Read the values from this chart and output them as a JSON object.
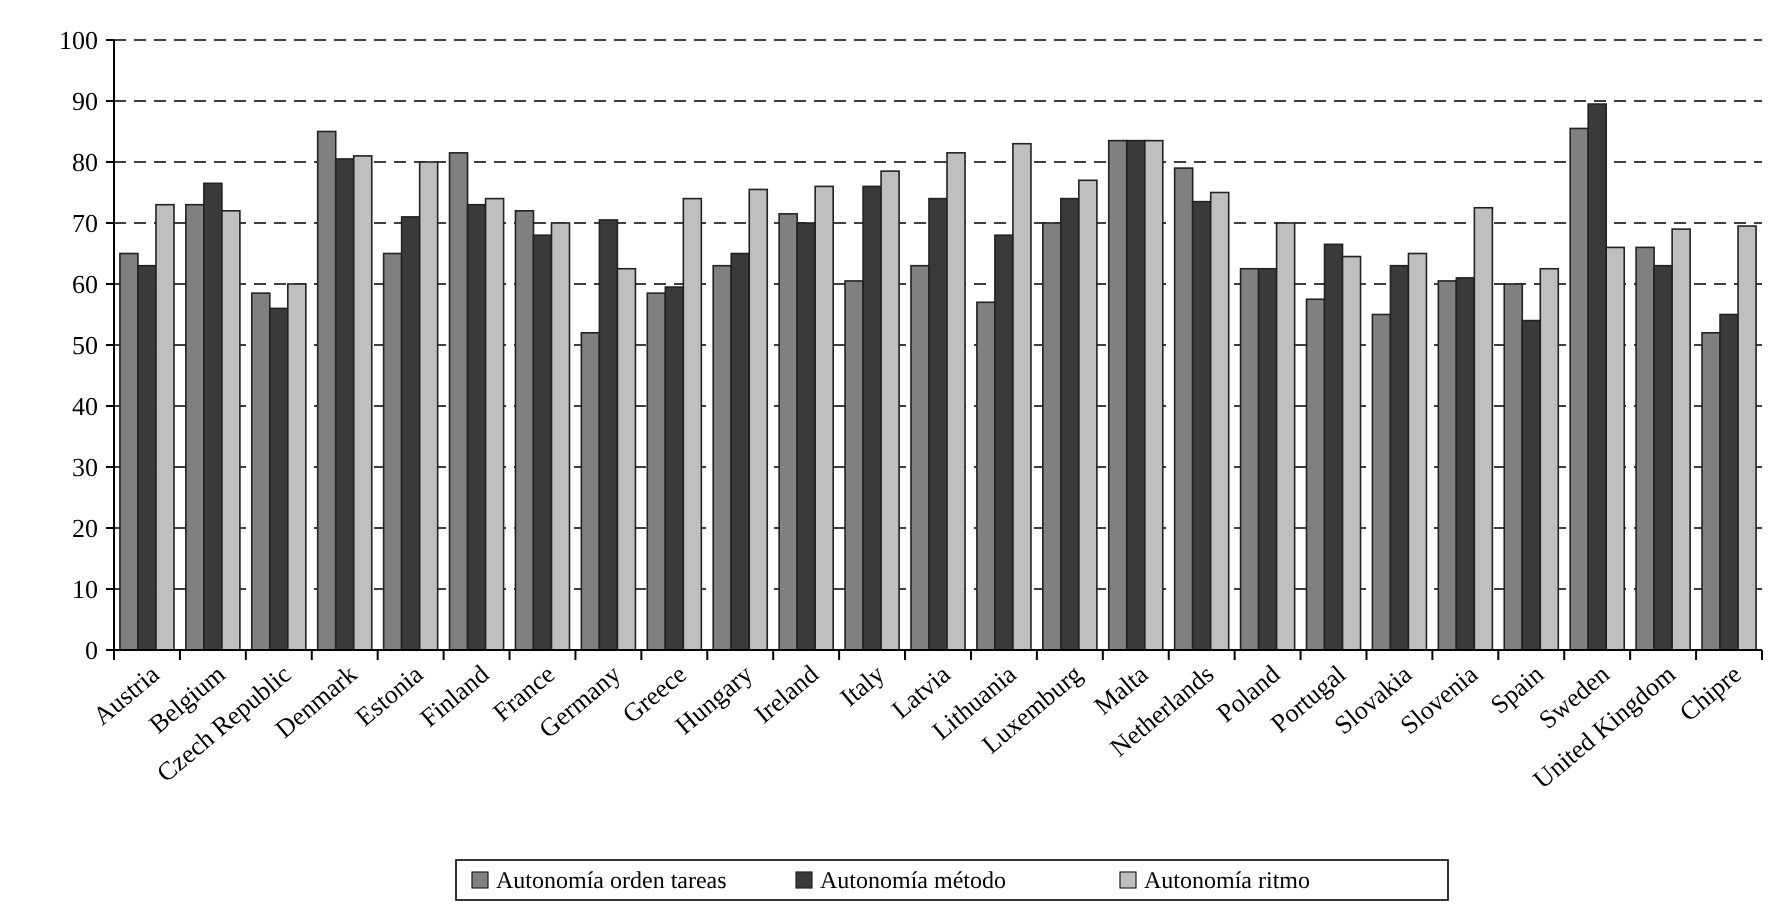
{
  "chart_data": {
    "type": "bar",
    "categories": [
      "Austria",
      "Belgium",
      "Czech Republic",
      "Denmark",
      "Estonia",
      "Finland",
      "France",
      "Germany",
      "Greece",
      "Hungary",
      "Ireland",
      "Italy",
      "Latvia",
      "Lithuania",
      "Luxemburg",
      "Malta",
      "Netherlands",
      "Poland",
      "Portugal",
      "Slovakia",
      "Slovenia",
      "Spain",
      "Sweden",
      "United Kingdom",
      "Chipre"
    ],
    "series": [
      {
        "name": "Autonomía orden tareas",
        "color": "#808080",
        "values": [
          65,
          73,
          58.5,
          85,
          65,
          81.5,
          72,
          52,
          58.5,
          63,
          71.5,
          60.5,
          63,
          57,
          70,
          83.5,
          79,
          62.5,
          57.5,
          55,
          60.5,
          60,
          85.5,
          66,
          52
        ]
      },
      {
        "name": "Autonomía método",
        "color": "#3a3a3a",
        "values": [
          63,
          76.5,
          56,
          80.5,
          71,
          73,
          68,
          70.5,
          59.5,
          65,
          70,
          76,
          74,
          68,
          74,
          83.5,
          73.5,
          62.5,
          66.5,
          63,
          61,
          54,
          89.5,
          63,
          55
        ]
      },
      {
        "name": "Autonomía ritmo",
        "color": "#bfbfbf",
        "values": [
          73,
          72,
          60,
          81,
          80,
          74,
          70,
          62.5,
          74,
          75.5,
          76,
          78.5,
          81.5,
          83,
          77,
          83.5,
          75,
          70,
          64.5,
          65,
          72.5,
          62.5,
          66,
          69,
          69.5
        ]
      }
    ],
    "ylim": [
      0,
      100
    ],
    "yticks": [
      0,
      10,
      20,
      30,
      40,
      50,
      60,
      70,
      80,
      90,
      100
    ],
    "grid": "y",
    "legend": "bottom"
  }
}
